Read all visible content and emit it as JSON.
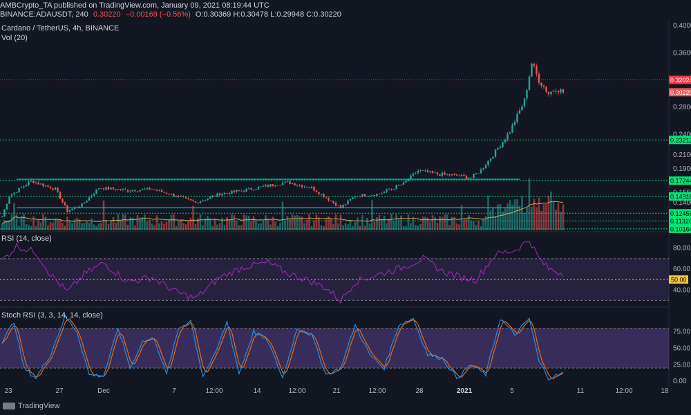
{
  "header": {
    "line1": "AMBCrypto_TA published on TradingView.com, January 09, 2021 08:19:44 UTC",
    "symbol": "BINANCE:ADAUSDT, 240",
    "last": "0.30220",
    "change": "−0.00169 (−0.56%)",
    "ohlc": "O:0.30369  H:0.30478  L:0.29948  C:0.30220"
  },
  "panes": {
    "main_label": "Cardano / TetherUS, 4h, BINANCE",
    "vol_label": "Vol (20)",
    "rsi_label": "RSI (14, close)",
    "stoch_label": "Stoch RSI (3, 3, 14, 14, close)"
  },
  "brand": {
    "name": "TradingView"
  },
  "colors": {
    "background": "#131722",
    "up": "#26a69a",
    "down": "#ef5350",
    "support": "#00e676",
    "resistance": "#f23645",
    "trend": "#00bcd4",
    "rsi": "#9c27b0",
    "stoch_k": "#2196f3",
    "stoch_d": "#ff6d00",
    "band": "#7e57c2",
    "vol_ma": "#e0a050"
  },
  "chart_data": [
    {
      "type": "candlestick",
      "title": "Cardano / TetherUS, 4h, BINANCE",
      "ylim": [
        0.0985,
        0.405
      ],
      "y_ticks": [
        "0.40000",
        "0.36000",
        "0.28000",
        "0.24000",
        "0.21000",
        "0.19000",
        "0.15500",
        "0.14000"
      ],
      "x_ticks": [
        "23",
        "27",
        "Dec",
        "7",
        "12:00",
        "14",
        "12:00",
        "21",
        "12:00",
        "28",
        "2021",
        "5",
        "11",
        "12:00",
        "18"
      ],
      "key_points": [
        {
          "t": 0,
          "p": 0.12
        },
        {
          "t": 3,
          "p": 0.15
        },
        {
          "t": 12,
          "p": 0.172
        },
        {
          "t": 22,
          "p": 0.16
        },
        {
          "t": 27,
          "p": 0.128
        },
        {
          "t": 33,
          "p": 0.137
        },
        {
          "t": 40,
          "p": 0.162
        },
        {
          "t": 52,
          "p": 0.158
        },
        {
          "t": 62,
          "p": 0.16
        },
        {
          "t": 72,
          "p": 0.15
        },
        {
          "t": 80,
          "p": 0.14
        },
        {
          "t": 90,
          "p": 0.153
        },
        {
          "t": 100,
          "p": 0.158
        },
        {
          "t": 110,
          "p": 0.165
        },
        {
          "t": 118,
          "p": 0.17
        },
        {
          "t": 128,
          "p": 0.162
        },
        {
          "t": 135,
          "p": 0.145
        },
        {
          "t": 140,
          "p": 0.133
        },
        {
          "t": 146,
          "p": 0.15
        },
        {
          "t": 156,
          "p": 0.153
        },
        {
          "t": 166,
          "p": 0.168
        },
        {
          "t": 172,
          "p": 0.187
        },
        {
          "t": 180,
          "p": 0.182
        },
        {
          "t": 188,
          "p": 0.18
        },
        {
          "t": 194,
          "p": 0.177
        },
        {
          "t": 198,
          "p": 0.188
        },
        {
          "t": 204,
          "p": 0.215
        },
        {
          "t": 210,
          "p": 0.245
        },
        {
          "t": 216,
          "p": 0.29
        },
        {
          "t": 219,
          "p": 0.345
        },
        {
          "t": 222,
          "p": 0.32
        },
        {
          "t": 226,
          "p": 0.3
        },
        {
          "t": 229,
          "p": 0.308
        },
        {
          "t": 232,
          "p": 0.302
        }
      ],
      "levels": [
        {
          "label": "0.32024",
          "value": 0.32024,
          "kind": "resistance"
        },
        {
          "label": "0.23213",
          "value": 0.23213,
          "kind": "support"
        },
        {
          "label": "0.17244",
          "value": 0.17244,
          "kind": "support"
        },
        {
          "label": "0.14916",
          "value": 0.14916,
          "kind": "support"
        },
        {
          "label": "0.12458",
          "value": 0.12458,
          "kind": "support"
        },
        {
          "label": "0.11320",
          "value": 0.1132,
          "kind": "support"
        },
        {
          "label": "0.10164",
          "value": 0.10164,
          "kind": "support"
        }
      ],
      "last_price": {
        "label": "0.30220",
        "value": 0.3022
      },
      "trendlines": [
        {
          "from_t": 6,
          "to_t": 214,
          "value": 0.1745
        },
        {
          "from_t": 6,
          "to_t": 214,
          "value": 0.1325
        }
      ]
    },
    {
      "type": "line",
      "title": "RSI (14, close)",
      "ylim": [
        25,
        95
      ],
      "y_ticks": [
        "80.00",
        "60.00",
        "40.00"
      ],
      "band": [
        30,
        70
      ],
      "midline": 50,
      "current_label": "50.00",
      "key_points": [
        {
          "t": 0,
          "p": 68
        },
        {
          "t": 6,
          "p": 82
        },
        {
          "t": 14,
          "p": 76
        },
        {
          "t": 20,
          "p": 55
        },
        {
          "t": 27,
          "p": 38
        },
        {
          "t": 34,
          "p": 55
        },
        {
          "t": 42,
          "p": 66
        },
        {
          "t": 52,
          "p": 48
        },
        {
          "t": 62,
          "p": 52
        },
        {
          "t": 72,
          "p": 38
        },
        {
          "t": 80,
          "p": 32
        },
        {
          "t": 90,
          "p": 52
        },
        {
          "t": 100,
          "p": 62
        },
        {
          "t": 110,
          "p": 66
        },
        {
          "t": 118,
          "p": 56
        },
        {
          "t": 126,
          "p": 50
        },
        {
          "t": 134,
          "p": 42
        },
        {
          "t": 140,
          "p": 30
        },
        {
          "t": 146,
          "p": 48
        },
        {
          "t": 156,
          "p": 55
        },
        {
          "t": 166,
          "p": 62
        },
        {
          "t": 174,
          "p": 70
        },
        {
          "t": 182,
          "p": 58
        },
        {
          "t": 190,
          "p": 52
        },
        {
          "t": 196,
          "p": 50
        },
        {
          "t": 204,
          "p": 74
        },
        {
          "t": 212,
          "p": 78
        },
        {
          "t": 218,
          "p": 88
        },
        {
          "t": 222,
          "p": 70
        },
        {
          "t": 226,
          "p": 60
        },
        {
          "t": 232,
          "p": 56
        }
      ]
    },
    {
      "type": "line",
      "title": "Stoch RSI (3, 3, 14, 14, close)",
      "ylim": [
        -5,
        110
      ],
      "y_ticks": [
        "75.00",
        "50.00",
        "25.00",
        "0.00"
      ],
      "band": [
        20,
        80
      ],
      "k_key_points": [
        {
          "t": 0,
          "p": 60
        },
        {
          "t": 5,
          "p": 90
        },
        {
          "t": 9,
          "p": 20
        },
        {
          "t": 14,
          "p": 5
        },
        {
          "t": 20,
          "p": 40
        },
        {
          "t": 26,
          "p": 98
        },
        {
          "t": 31,
          "p": 75
        },
        {
          "t": 36,
          "p": 10
        },
        {
          "t": 42,
          "p": 8
        },
        {
          "t": 48,
          "p": 80
        },
        {
          "t": 53,
          "p": 20
        },
        {
          "t": 58,
          "p": 60
        },
        {
          "t": 63,
          "p": 65
        },
        {
          "t": 68,
          "p": 10
        },
        {
          "t": 73,
          "p": 80
        },
        {
          "t": 78,
          "p": 92
        },
        {
          "t": 83,
          "p": 8
        },
        {
          "t": 88,
          "p": 40
        },
        {
          "t": 93,
          "p": 90
        },
        {
          "t": 98,
          "p": 12
        },
        {
          "t": 104,
          "p": 75
        },
        {
          "t": 110,
          "p": 60
        },
        {
          "t": 116,
          "p": 5
        },
        {
          "t": 122,
          "p": 80
        },
        {
          "t": 128,
          "p": 70
        },
        {
          "t": 134,
          "p": 10
        },
        {
          "t": 140,
          "p": 20
        },
        {
          "t": 146,
          "p": 85
        },
        {
          "t": 152,
          "p": 40
        },
        {
          "t": 158,
          "p": 20
        },
        {
          "t": 164,
          "p": 85
        },
        {
          "t": 170,
          "p": 95
        },
        {
          "t": 176,
          "p": 40
        },
        {
          "t": 182,
          "p": 35
        },
        {
          "t": 188,
          "p": 5
        },
        {
          "t": 194,
          "p": 25
        },
        {
          "t": 200,
          "p": 10
        },
        {
          "t": 206,
          "p": 95
        },
        {
          "t": 212,
          "p": 70
        },
        {
          "t": 218,
          "p": 95
        },
        {
          "t": 222,
          "p": 30
        },
        {
          "t": 226,
          "p": 5
        },
        {
          "t": 232,
          "p": 12
        }
      ]
    }
  ]
}
